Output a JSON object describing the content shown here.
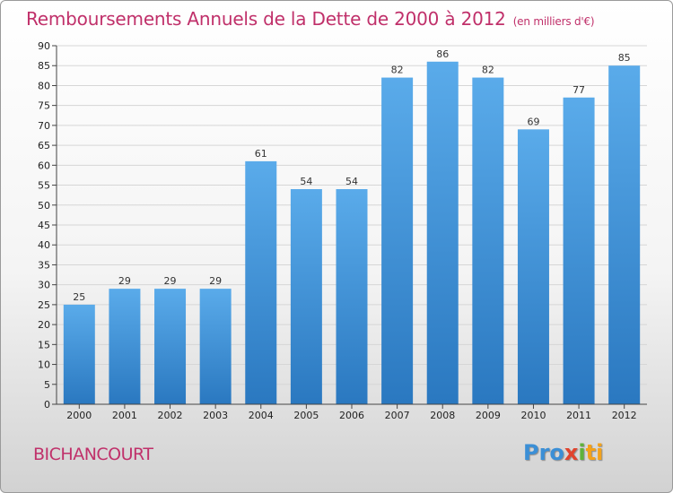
{
  "chart_data": {
    "type": "bar",
    "title": "Remboursements Annuels de la Dette de 2000 à 2012",
    "subtitle": "(en milliers d'€)",
    "categories": [
      "2000",
      "2001",
      "2002",
      "2003",
      "2004",
      "2005",
      "2006",
      "2007",
      "2008",
      "2009",
      "2010",
      "2011",
      "2012"
    ],
    "values": [
      25,
      29,
      29,
      29,
      61,
      54,
      54,
      82,
      86,
      82,
      69,
      77,
      85
    ],
    "xlabel": "",
    "ylabel": "",
    "ylim": [
      0,
      90
    ],
    "yticks": [
      0,
      5,
      10,
      15,
      20,
      25,
      30,
      35,
      40,
      45,
      50,
      55,
      60,
      65,
      70,
      75,
      80,
      85,
      90
    ],
    "grid": true,
    "legend": "none",
    "bar_color_top": "#5aabea",
    "bar_color_bottom": "#2a78c0",
    "title_color": "#c0306a"
  },
  "place_label": "BICHANCOURT",
  "logo": {
    "p1": "Pro",
    "p2": "x",
    "p3": "i",
    "p4": "ti"
  }
}
